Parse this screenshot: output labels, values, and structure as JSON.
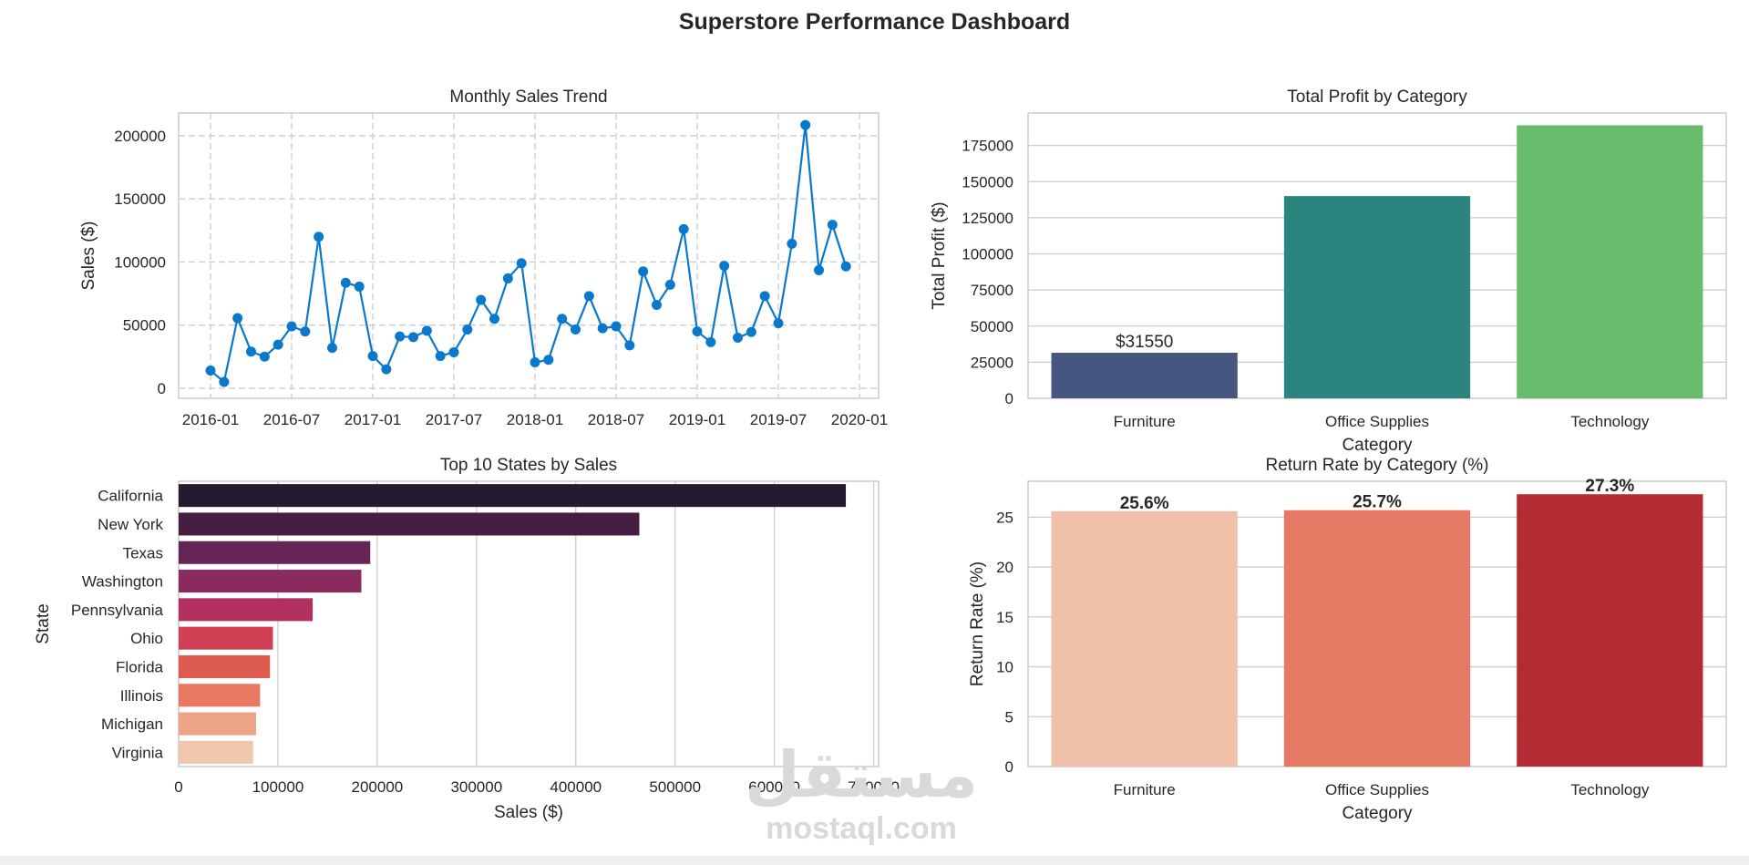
{
  "dashboard": {
    "title": "Superstore Performance Dashboard",
    "watermark_logo": "مستقل",
    "watermark_text": "mostaql.com"
  },
  "chart_data": [
    {
      "type": "line",
      "title": "Monthly Sales Trend",
      "xlabel": "",
      "ylabel": "Sales ($)",
      "x": [
        "2016-01",
        "2016-02",
        "2016-03",
        "2016-04",
        "2016-05",
        "2016-06",
        "2016-07",
        "2016-08",
        "2016-09",
        "2016-10",
        "2016-11",
        "2016-12",
        "2017-01",
        "2017-02",
        "2017-03",
        "2017-04",
        "2017-05",
        "2017-06",
        "2017-07",
        "2017-08",
        "2017-09",
        "2017-10",
        "2017-11",
        "2017-12",
        "2018-01",
        "2018-02",
        "2018-03",
        "2018-04",
        "2018-05",
        "2018-06",
        "2018-07",
        "2018-08",
        "2018-09",
        "2018-10",
        "2018-11",
        "2018-12",
        "2019-01",
        "2019-02",
        "2019-03",
        "2019-04",
        "2019-05",
        "2019-06",
        "2019-07",
        "2019-08",
        "2019-09",
        "2019-10",
        "2019-11",
        "2019-12"
      ],
      "values": [
        14000,
        5000,
        55500,
        29000,
        25000,
        34500,
        49000,
        45000,
        120000,
        32000,
        83500,
        80500,
        25500,
        15000,
        41000,
        40500,
        45500,
        25500,
        28500,
        46500,
        70000,
        55000,
        87000,
        99000,
        20500,
        22500,
        55000,
        46500,
        73000,
        47500,
        49000,
        34000,
        92500,
        66000,
        82000,
        126000,
        45000,
        36500,
        97000,
        40000,
        44500,
        73000,
        51500,
        114500,
        208500,
        93500,
        129500,
        96500
      ],
      "xticks": [
        "2016-01",
        "2016-07",
        "2017-01",
        "2017-07",
        "2018-01",
        "2018-07",
        "2019-01",
        "2019-07",
        "2020-01"
      ],
      "yticks": [
        0,
        50000,
        100000,
        150000,
        200000
      ],
      "ylim": [
        -8000,
        218000
      ],
      "grid": true,
      "color": "#0a79cc"
    },
    {
      "type": "bar",
      "title": "Total Profit by Category",
      "xlabel": "Category",
      "ylabel": "Total Profit ($)",
      "categories": [
        "Furniture",
        "Office Supplies",
        "Technology"
      ],
      "values": [
        31550,
        140000,
        189000
      ],
      "bar_labels": [
        "$31550",
        "",
        ""
      ],
      "colors": [
        "#455781",
        "#2c847e",
        "#68bd6c"
      ],
      "yticks": [
        0,
        25000,
        50000,
        75000,
        100000,
        125000,
        150000,
        175000
      ],
      "ylim": [
        0,
        197500
      ],
      "grid": true
    },
    {
      "type": "bar",
      "orientation": "horizontal",
      "title": "Top 10 States by Sales",
      "xlabel": "Sales ($)",
      "ylabel": "State",
      "categories": [
        "California",
        "New York",
        "Texas",
        "Washington",
        "Pennsylvania",
        "Ohio",
        "Florida",
        "Illinois",
        "Michigan",
        "Virginia"
      ],
      "values": [
        672000,
        464000,
        193000,
        184000,
        135000,
        95000,
        92000,
        82000,
        78000,
        75000
      ],
      "colors": [
        "#251a30",
        "#431e42",
        "#662655",
        "#8b2a5e",
        "#b2305f",
        "#d03f53",
        "#de5c4f",
        "#e8785f",
        "#eba586",
        "#f0c7ac"
      ],
      "xticks": [
        0,
        100000,
        200000,
        300000,
        400000,
        500000,
        600000,
        700000
      ],
      "xlim": [
        0,
        705000
      ],
      "grid": true
    },
    {
      "type": "bar",
      "title": "Return Rate by Category (%)",
      "xlabel": "Category",
      "ylabel": "Return Rate (%)",
      "categories": [
        "Furniture",
        "Office Supplies",
        "Technology"
      ],
      "values": [
        25.6,
        25.7,
        27.3
      ],
      "bar_labels": [
        "25.6%",
        "25.7%",
        "27.3%"
      ],
      "colors": [
        "#f0c0ab",
        "#e57963",
        "#b42c33"
      ],
      "yticks": [
        0,
        5,
        10,
        15,
        20,
        25
      ],
      "ylim": [
        0,
        28.6
      ],
      "grid": true
    }
  ]
}
